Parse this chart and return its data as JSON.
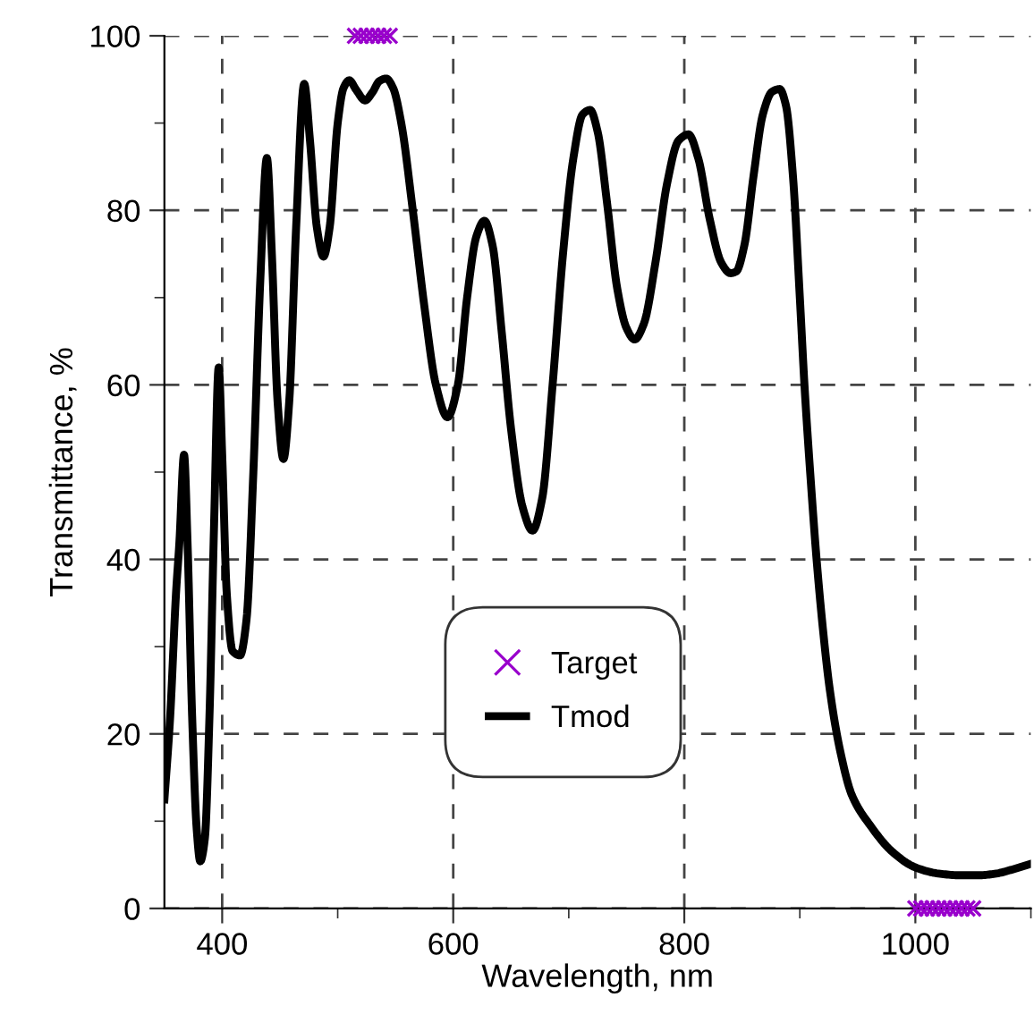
{
  "chart_data": {
    "type": "line",
    "xlabel": "Wavelength, nm",
    "ylabel": "Transmittance, %",
    "xlim": [
      350,
      1100
    ],
    "xticks": [
      400,
      600,
      800,
      1000
    ],
    "ylim": [
      0,
      100
    ],
    "yticks": [
      0,
      20,
      40,
      60,
      80,
      100
    ],
    "grid": true,
    "legend": "lower center",
    "series": [
      {
        "name": "Target",
        "type": "scatter",
        "marker": "cross",
        "color": "#9900cc",
        "x": [
          515,
          520,
          525,
          530,
          535,
          540,
          545,
          1000,
          1005,
          1010,
          1015,
          1020,
          1025,
          1030,
          1035,
          1040,
          1045,
          1050
        ],
        "values": [
          100,
          100,
          100,
          100,
          100,
          100,
          100,
          0,
          0,
          0,
          0,
          0,
          0,
          0,
          0,
          0,
          0,
          0
        ]
      },
      {
        "name": "Tmod",
        "marker": "none",
        "line_style": "solid",
        "color": "#000000",
        "x": [
          350,
          355,
          360,
          363,
          367,
          370,
          374,
          378,
          381,
          385,
          389,
          393,
          397,
          400,
          404,
          409,
          415.5,
          421,
          427,
          433,
          438.7,
          443,
          448,
          453,
          458,
          464,
          471,
          476,
          482,
          487.7,
          493,
          500,
          505,
          510,
          516,
          523.7,
          530,
          536,
          542,
          548,
          555,
          565,
          575,
          585,
          595,
          604,
          612,
          620,
          627,
          634,
          642,
          650,
          660,
          668.6,
          677,
          686,
          695,
          704,
          712,
          718.5,
          725,
          733,
          742,
          750,
          757,
          765,
          775,
          785,
          795,
          803.6,
          812,
          822,
          832,
          840,
          845,
          852,
          860,
          868,
          876,
          882.5,
          888,
          894,
          900,
          904,
          910,
          914.5,
          920,
          926,
          935,
          945,
          961,
          980,
          1000,
          1020,
          1038,
          1055,
          1070,
          1085,
          1100
        ],
        "values": [
          12.5,
          22,
          36,
          42,
          52,
          42,
          22,
          9,
          5.4,
          8,
          22,
          44,
          62,
          52,
          36,
          29.5,
          29,
          33,
          50,
          72,
          86,
          75,
          58,
          51.5,
          58,
          78,
          94.5,
          88,
          78,
          74.7,
          78,
          90,
          94,
          94.9,
          93.8,
          92.6,
          93.5,
          94.8,
          95.1,
          94,
          90,
          80,
          69,
          60,
          56.3,
          60,
          70,
          77,
          78.8,
          76,
          66,
          55,
          46,
          43.3,
          47,
          60,
          75,
          86,
          91,
          91.5,
          89,
          81,
          71,
          66.5,
          65.2,
          67,
          74,
          83,
          88,
          88.7,
          86,
          79,
          74,
          72.8,
          73,
          76,
          84,
          91,
          93.6,
          93.9,
          92,
          84,
          70,
          60,
          48,
          40,
          32,
          25,
          18,
          13,
          9.5,
          6.5,
          4.7,
          4,
          3.8,
          3.8,
          4,
          4.5,
          5.1
        ]
      }
    ]
  }
}
